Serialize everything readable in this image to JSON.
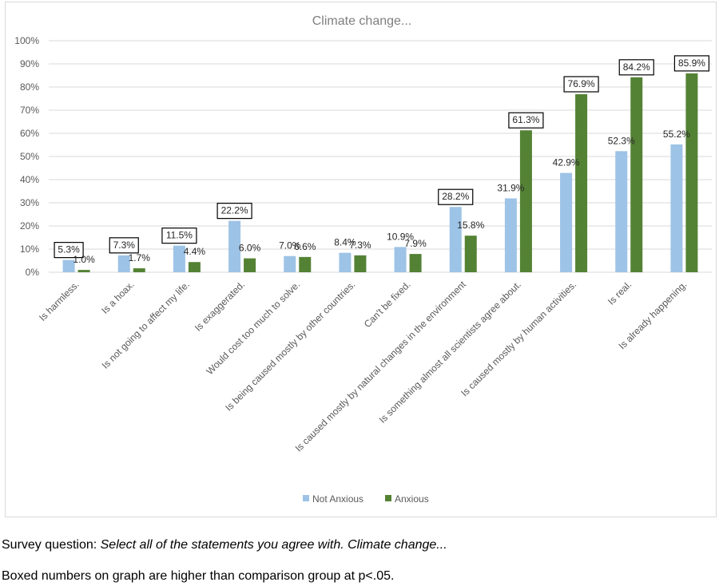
{
  "chart_data": {
    "type": "bar",
    "title": "Climate change...",
    "xlabel": "",
    "ylabel": "",
    "ylim": [
      0,
      100
    ],
    "y_ticks": [
      "0%",
      "10%",
      "20%",
      "30%",
      "40%",
      "50%",
      "60%",
      "70%",
      "80%",
      "90%",
      "100%"
    ],
    "grid": true,
    "legend_position": "bottom",
    "categories": [
      "Is harmless.",
      "Is a hoax.",
      "Is not going to affect my life.",
      "Is exaggerated.",
      "Would cost too much to solve.",
      "Is being caused mostly by other countries.",
      "Can't be fixed.",
      "Is caused mostly by natural changes in the environment",
      "Is something almost all scientists agree about.",
      "Is caused mostly by human activities.",
      "Is real.",
      "Is already happening."
    ],
    "series": [
      {
        "name": "Not Anxious",
        "color": "#9dc3e6",
        "values": [
          5.3,
          7.3,
          11.5,
          22.2,
          7.0,
          8.4,
          10.9,
          28.2,
          31.9,
          42.9,
          52.3,
          55.2
        ],
        "labels": [
          "5.3%",
          "7.3%",
          "11.5%",
          "22.2%",
          "7.0%",
          "8.4%",
          "10.9%",
          "28.2%",
          "31.9%",
          "42.9%",
          "52.3%",
          "55.2%"
        ],
        "boxed": [
          true,
          true,
          true,
          true,
          false,
          false,
          false,
          true,
          false,
          false,
          false,
          false
        ]
      },
      {
        "name": "Anxious",
        "color": "#548235",
        "values": [
          1.0,
          1.7,
          4.4,
          6.0,
          6.6,
          7.3,
          7.9,
          15.8,
          61.3,
          76.9,
          84.2,
          85.9
        ],
        "labels": [
          "1.0%",
          "1.7%",
          "4.4%",
          "6.0%",
          "6.6%",
          "7.3%",
          "7.9%",
          "15.8%",
          "61.3%",
          "76.9%",
          "84.2%",
          "85.9%"
        ],
        "boxed": [
          false,
          false,
          false,
          false,
          false,
          false,
          false,
          false,
          true,
          true,
          true,
          true
        ]
      }
    ]
  },
  "captions": {
    "line1_prefix": "Survey question: ",
    "line1_italic": "Select all of the statements you agree with. Climate change...",
    "line2": "Boxed numbers on graph are higher than comparison group at p<.05."
  }
}
